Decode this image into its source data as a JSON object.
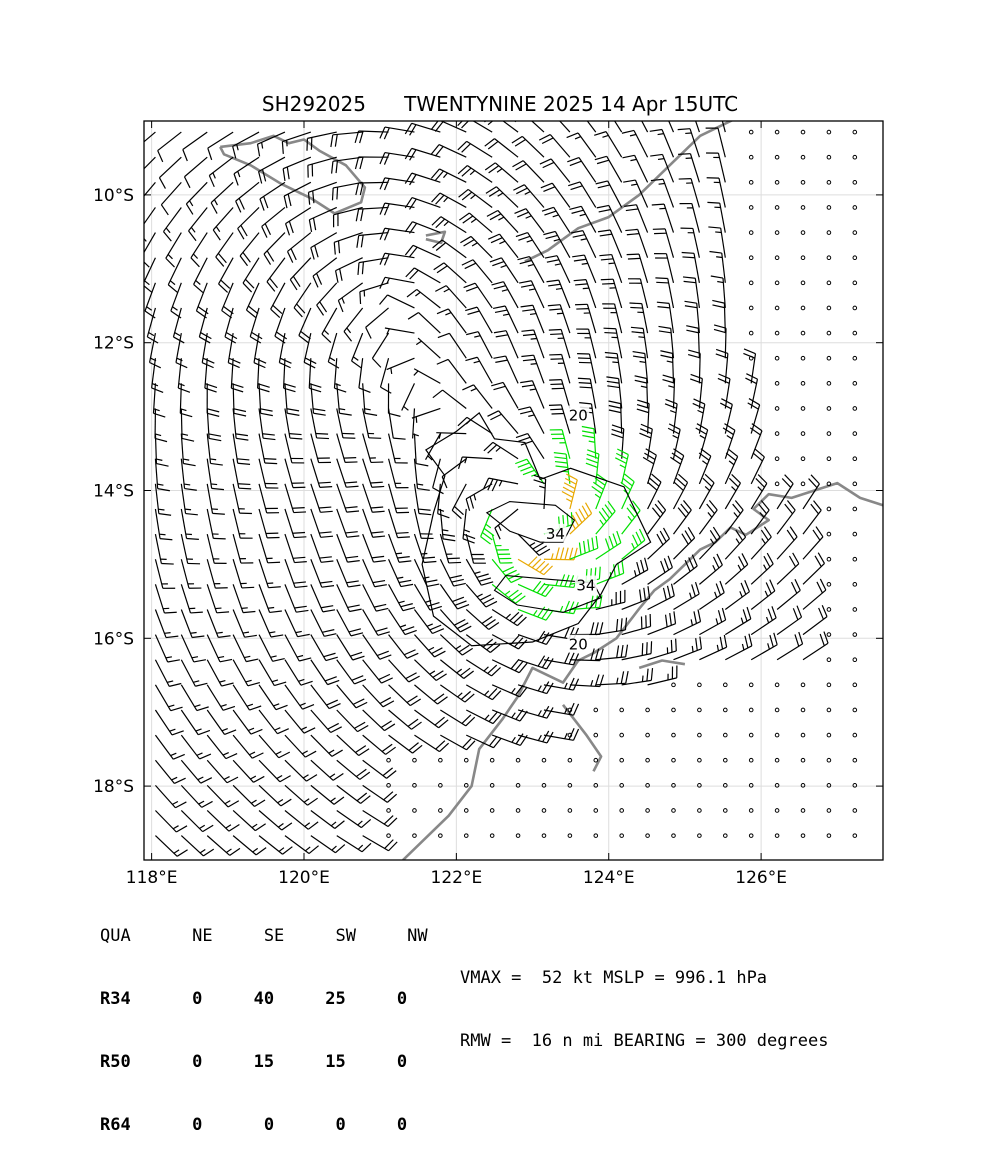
{
  "title": {
    "storm_id": "SH292025",
    "storm_text": "TWENTYNINE 2025 14 Apr 15UTC"
  },
  "wind_radii": {
    "headers": [
      "QUA",
      "NE",
      "SE",
      "SW",
      "NW"
    ],
    "rows": [
      {
        "label": "R34",
        "ne": "0",
        "se": "40",
        "sw": "25",
        "nw": "0"
      },
      {
        "label": "R50",
        "ne": "0",
        "se": "15",
        "sw": "15",
        "nw": "0"
      },
      {
        "label": "R64",
        "ne": "0",
        "se": "0",
        "sw": "0",
        "nw": "0"
      }
    ]
  },
  "stats": {
    "line1": "VMAX =  52 kt MSLP = 996.1 hPa",
    "line2": "RMW =  16 n mi BEARING = 300 degrees"
  },
  "chart_data": {
    "type": "wind_barb_map",
    "xlim": [
      117.9,
      127.6
    ],
    "ylim": [
      -19.0,
      -9.0
    ],
    "x_ticks": [
      118,
      120,
      122,
      124,
      126
    ],
    "x_tick_labels": [
      "118°E",
      "120°E",
      "122°E",
      "124°E",
      "126°E"
    ],
    "y_ticks": [
      -10,
      -12,
      -14,
      -16,
      -18
    ],
    "y_tick_labels": [
      "10°S",
      "12°S",
      "14°S",
      "16°S",
      "18°S"
    ],
    "grid": true,
    "storm_center": {
      "lon": 123.0,
      "lat": -14.4
    },
    "cyclonic_center_upper": {
      "lon": 121.3,
      "lat": -11.5
    },
    "contour_levels": [
      {
        "level": "20",
        "color": "#000000"
      },
      {
        "level": "34",
        "color": "#000000"
      }
    ],
    "contour_label_positions": [
      {
        "text": "20",
        "lon": 123.6,
        "lat": -13.0
      },
      {
        "text": "20",
        "lon": 123.6,
        "lat": -16.1
      },
      {
        "text": "34",
        "lon": 123.3,
        "lat": -14.6
      },
      {
        "text": "34",
        "lon": 123.7,
        "lat": -15.3
      }
    ],
    "barb_colors": {
      "calm_and_light": "#000000",
      "gale": "#00e000",
      "storm": "#e8a800"
    },
    "coastline_color": "#888888"
  }
}
